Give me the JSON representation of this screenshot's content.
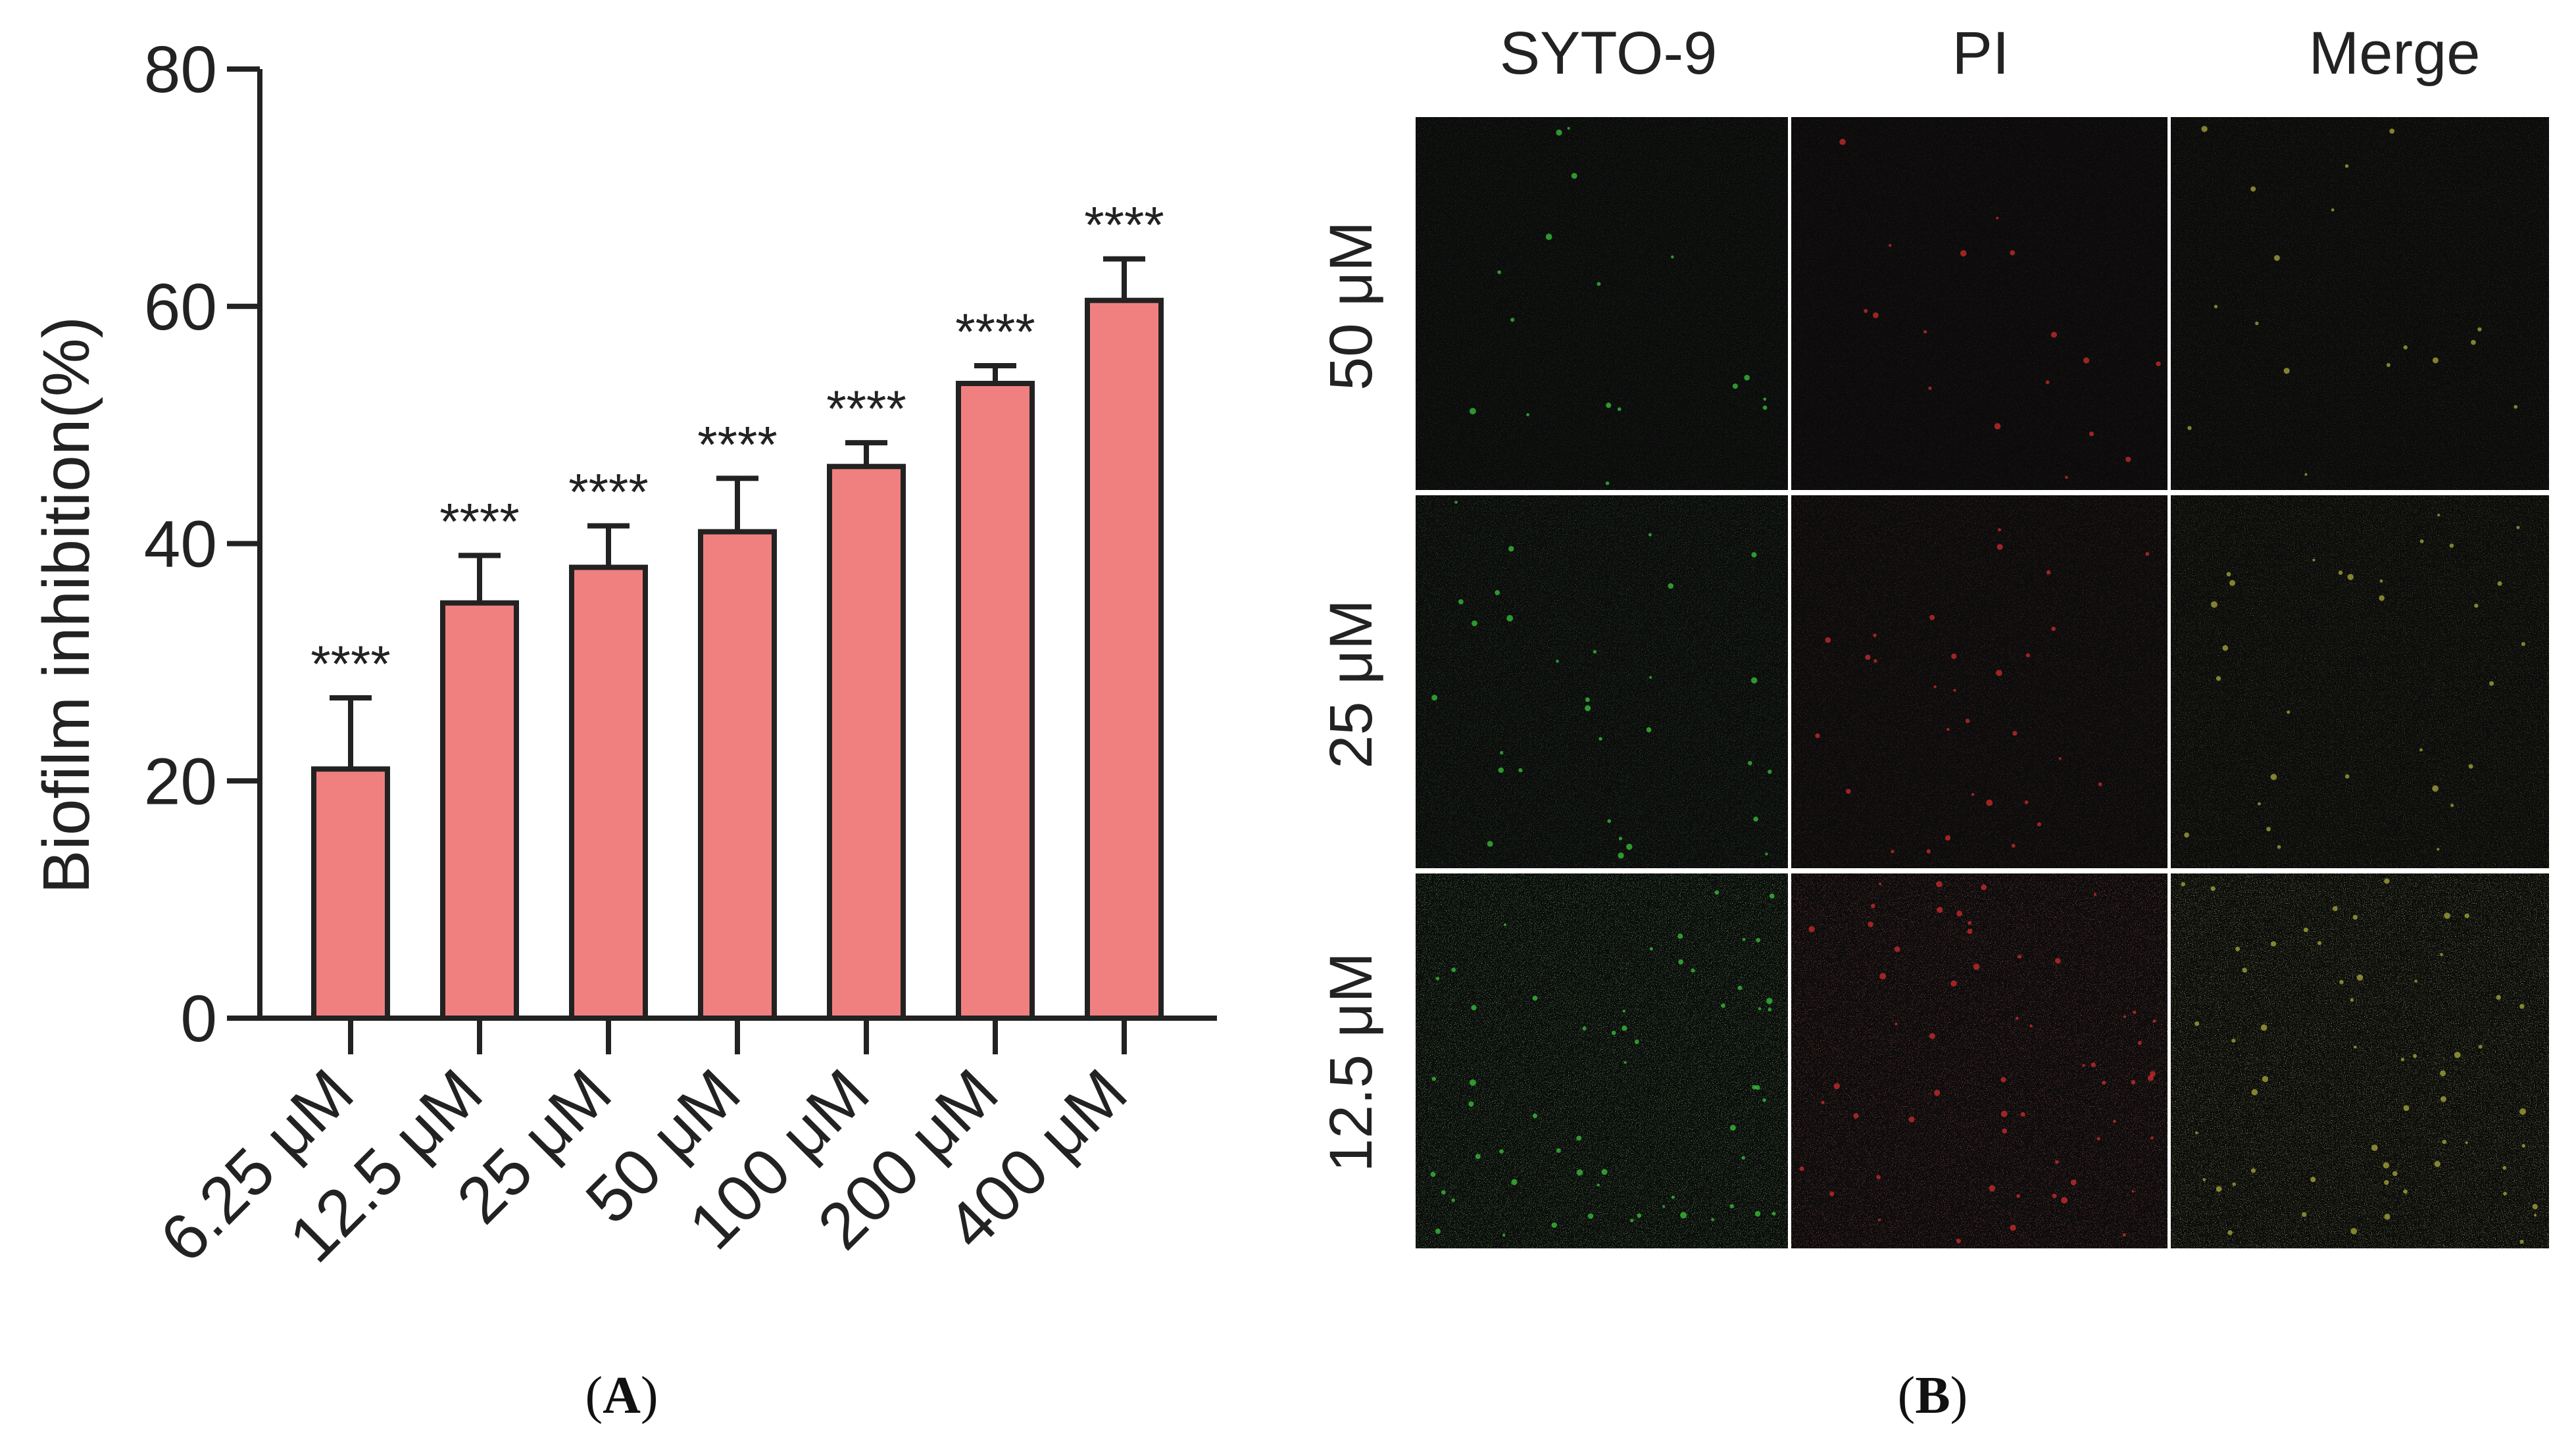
{
  "chart_data": {
    "type": "bar",
    "title": "",
    "xlabel": "",
    "ylabel": "Biofilm inhibition(%)",
    "ylim": [
      0,
      80
    ],
    "yticks": [
      0,
      20,
      40,
      60,
      80
    ],
    "categories": [
      "6.25 μM",
      "12.5 μM",
      "25 μM",
      "50 μM",
      "100 μM",
      "200 μM",
      "400 μM"
    ],
    "values": [
      21,
      35,
      38,
      41,
      46.5,
      53.5,
      60.5
    ],
    "errors": [
      6,
      4,
      3.5,
      4.5,
      2,
      1.5,
      3.5
    ],
    "significance": [
      "****",
      "****",
      "****",
      "****",
      "****",
      "****",
      "****"
    ],
    "bar_color": "#f08080"
  },
  "panel_a": {
    "label_open": "(",
    "label_letter": "A",
    "label_close": ")"
  },
  "panel_b": {
    "label_open": "(",
    "label_letter": "B",
    "label_close": ")",
    "columns": [
      "SYTO-9",
      "PI",
      "Merge"
    ],
    "rows": [
      "50 μM",
      "25 μM",
      "12.5 μM"
    ],
    "colors": {
      "green": "#3cd23c",
      "red": "#dc2d2d",
      "merge": "#b4b43c",
      "background": "#0b0b0b"
    }
  }
}
